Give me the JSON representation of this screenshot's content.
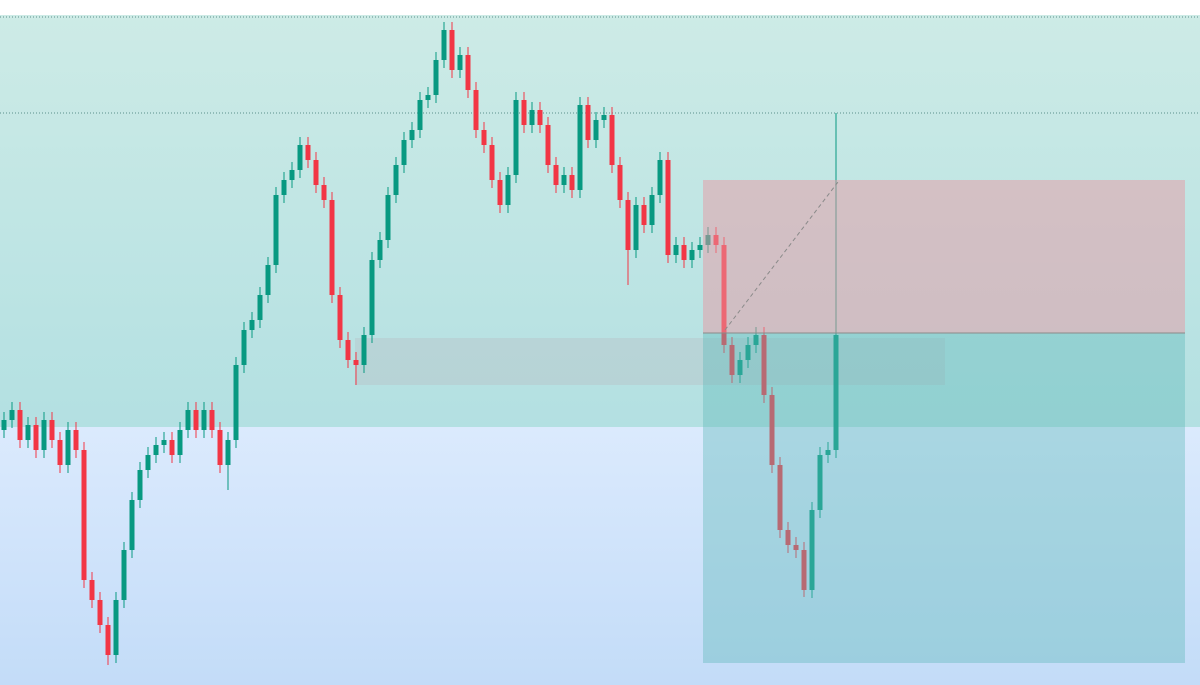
{
  "chart_data": {
    "type": "candlestick",
    "ylim": [
      0,
      685
    ],
    "up_color": "#089981",
    "down_color": "#f23645",
    "open": [
      255,
      265,
      275,
      245,
      260,
      235,
      265,
      245,
      220,
      255,
      235,
      105,
      85,
      60,
      30,
      85,
      135,
      185,
      215,
      230,
      240,
      245,
      230,
      255,
      275,
      255,
      275,
      255,
      220,
      245,
      320,
      355,
      365,
      390,
      420,
      490,
      505,
      515,
      540,
      525,
      500,
      485,
      390,
      345,
      325,
      320,
      350,
      425,
      445,
      490,
      520,
      545,
      555,
      585,
      590,
      625,
      655,
      615,
      630,
      595,
      555,
      540,
      505,
      480,
      510,
      585,
      560,
      575,
      560,
      520,
      500,
      510,
      495,
      580,
      545,
      565,
      570,
      520,
      485,
      435,
      480,
      460,
      490,
      525,
      430,
      440,
      425,
      435,
      440,
      450,
      440,
      340,
      310,
      325,
      340,
      350,
      290,
      220,
      155,
      140,
      135,
      95,
      175,
      230,
      235
    ],
    "high": [
      273,
      283,
      283,
      268,
      268,
      273,
      273,
      253,
      263,
      263,
      243,
      113,
      93,
      68,
      93,
      143,
      193,
      223,
      238,
      248,
      253,
      253,
      263,
      283,
      283,
      283,
      283,
      263,
      253,
      328,
      363,
      373,
      398,
      428,
      498,
      513,
      523,
      548,
      548,
      533,
      508,
      493,
      398,
      353,
      333,
      358,
      433,
      453,
      498,
      528,
      553,
      563,
      593,
      598,
      633,
      663,
      663,
      638,
      638,
      603,
      563,
      548,
      513,
      518,
      593,
      593,
      583,
      583,
      568,
      528,
      518,
      518,
      588,
      588,
      573,
      578,
      578,
      528,
      493,
      488,
      488,
      498,
      533,
      533,
      448,
      448,
      443,
      448,
      458,
      458,
      448,
      348,
      333,
      348,
      358,
      358,
      298,
      228,
      163,
      148,
      143,
      183,
      238,
      243,
      572
    ],
    "low": [
      247,
      257,
      237,
      237,
      227,
      227,
      237,
      212,
      212,
      227,
      97,
      77,
      52,
      20,
      22,
      77,
      127,
      177,
      207,
      222,
      232,
      222,
      222,
      247,
      247,
      247,
      247,
      212,
      195,
      237,
      312,
      347,
      357,
      382,
      412,
      482,
      497,
      507,
      517,
      492,
      477,
      382,
      337,
      317,
      300,
      312,
      342,
      417,
      437,
      482,
      512,
      537,
      547,
      577,
      582,
      617,
      607,
      607,
      587,
      547,
      532,
      497,
      472,
      472,
      502,
      552,
      552,
      552,
      512,
      492,
      492,
      487,
      487,
      537,
      537,
      557,
      512,
      477,
      400,
      427,
      452,
      452,
      482,
      422,
      422,
      417,
      417,
      427,
      432,
      432,
      332,
      302,
      302,
      317,
      332,
      282,
      212,
      147,
      132,
      127,
      88,
      87,
      167,
      222,
      227
    ],
    "close": [
      265,
      275,
      245,
      260,
      235,
      265,
      245,
      220,
      255,
      235,
      105,
      85,
      60,
      30,
      85,
      135,
      185,
      215,
      230,
      240,
      245,
      230,
      255,
      275,
      255,
      275,
      255,
      220,
      245,
      320,
      355,
      365,
      390,
      420,
      490,
      505,
      515,
      540,
      525,
      500,
      485,
      390,
      345,
      325,
      320,
      350,
      425,
      445,
      490,
      520,
      545,
      555,
      585,
      590,
      625,
      655,
      615,
      630,
      595,
      555,
      540,
      505,
      480,
      510,
      585,
      560,
      575,
      560,
      520,
      500,
      510,
      495,
      580,
      545,
      565,
      570,
      520,
      485,
      435,
      480,
      460,
      490,
      525,
      430,
      440,
      425,
      435,
      440,
      450,
      440,
      340,
      310,
      325,
      340,
      350,
      290,
      220,
      155,
      140,
      135,
      95,
      175,
      230,
      235,
      350
    ]
  }
}
